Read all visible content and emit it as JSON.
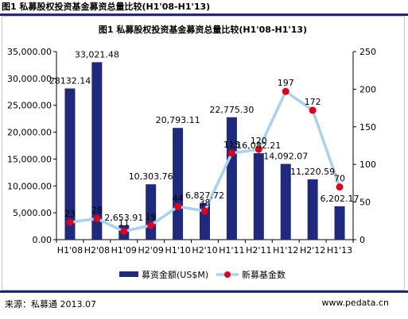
{
  "page": {
    "title": "图1 私募股权投资基金募资总量比较(H1'08-H1'13)",
    "source": "来源：私募通 2013.07",
    "website": "www.pedata.cn"
  },
  "chart_data": {
    "type": "bar",
    "title": "图1 私募股权投资基金募资总量比较(H1'08-H1'13)",
    "categories": [
      "H1'08",
      "H2'08",
      "H1'09",
      "H2'09",
      "H1'10",
      "H2'10",
      "H1'11",
      "H2'11",
      "H1'12",
      "H2'12",
      "H1'13"
    ],
    "series": [
      {
        "name": "募资金额(US$M)",
        "type": "bar",
        "axis": "left",
        "color": "#1f2a7c",
        "values": [
          28132.14,
          33021.48,
          2653.91,
          10303.76,
          20793.11,
          6827.72,
          22775.3,
          16082.21,
          14092.07,
          11220.59,
          6202.17
        ],
        "labels": [
          "28132.14",
          "33,021.48",
          "2,653.91",
          "10,303.76",
          "20,793.11",
          "6,827.72",
          "22,775.30",
          "16,082.21",
          "14,092.07",
          "11,220.59",
          "6,202.17"
        ]
      },
      {
        "name": "新募基金数",
        "type": "line",
        "axis": "right",
        "color": "#e3001b",
        "line_color": "#a8d2f0",
        "values": [
          23,
          28,
          11,
          19,
          44,
          38,
          115,
          120,
          197,
          172,
          70
        ],
        "labels": [
          "23",
          "28",
          "11",
          "19",
          "44",
          "38",
          "115",
          "120",
          "197",
          "172",
          "70"
        ]
      }
    ],
    "y_left": {
      "min": 0,
      "max": 35000,
      "ticks": [
        0,
        5000,
        10000,
        15000,
        20000,
        25000,
        30000,
        35000
      ],
      "tick_labels": [
        "0.00",
        "5,000.00",
        "10,000.00",
        "15,000.00",
        "20,000.00",
        "25,000.00",
        "30,000.00",
        "35,000.00"
      ]
    },
    "y_right": {
      "min": 0,
      "max": 250,
      "ticks": [
        0,
        50,
        100,
        150,
        200,
        250
      ],
      "tick_labels": [
        "0",
        "50",
        "100",
        "150",
        "200",
        "250"
      ]
    },
    "grid": false,
    "legend": "bottom"
  }
}
